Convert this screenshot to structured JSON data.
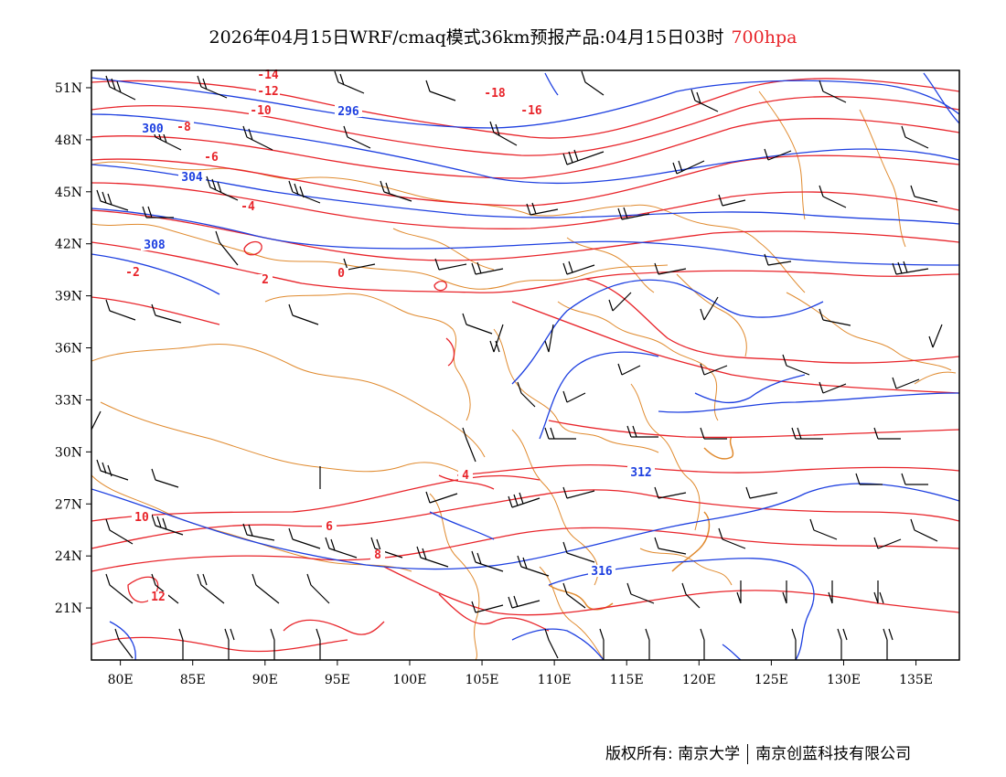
{
  "title": {
    "main": "2026年04月15日WRF/cmaq模式36km预报产品:04月15日03时",
    "level": "700hpa"
  },
  "colors": {
    "temperature": "#e8242a",
    "geopotential": "#1d3fe0",
    "border": "#e08a2e",
    "wind": "#000000"
  },
  "axes": {
    "lon_labels": [
      "80E",
      "85E",
      "90E",
      "95E",
      "100E",
      "105E",
      "110E",
      "115E",
      "120E",
      "125E",
      "130E",
      "135E"
    ],
    "lat_labels": [
      "51N",
      "48N",
      "45N",
      "42N",
      "39N",
      "36N",
      "33N",
      "30N",
      "27N",
      "24N",
      "21N"
    ],
    "lon_range": [
      78,
      138
    ],
    "lat_range": [
      18,
      52
    ]
  },
  "isotherm_labels": [
    "-14",
    "-12",
    "-10",
    "-8",
    "-6",
    "-4",
    "-2",
    "0",
    "2",
    "4",
    "6",
    "8",
    "10",
    "12",
    "-16",
    "-18"
  ],
  "geopotential_labels": [
    "296",
    "300",
    "304",
    "308",
    "312",
    "316"
  ],
  "footer": {
    "left": "版权所有: 南京大学",
    "right": "南京创蓝科技有限公司"
  }
}
